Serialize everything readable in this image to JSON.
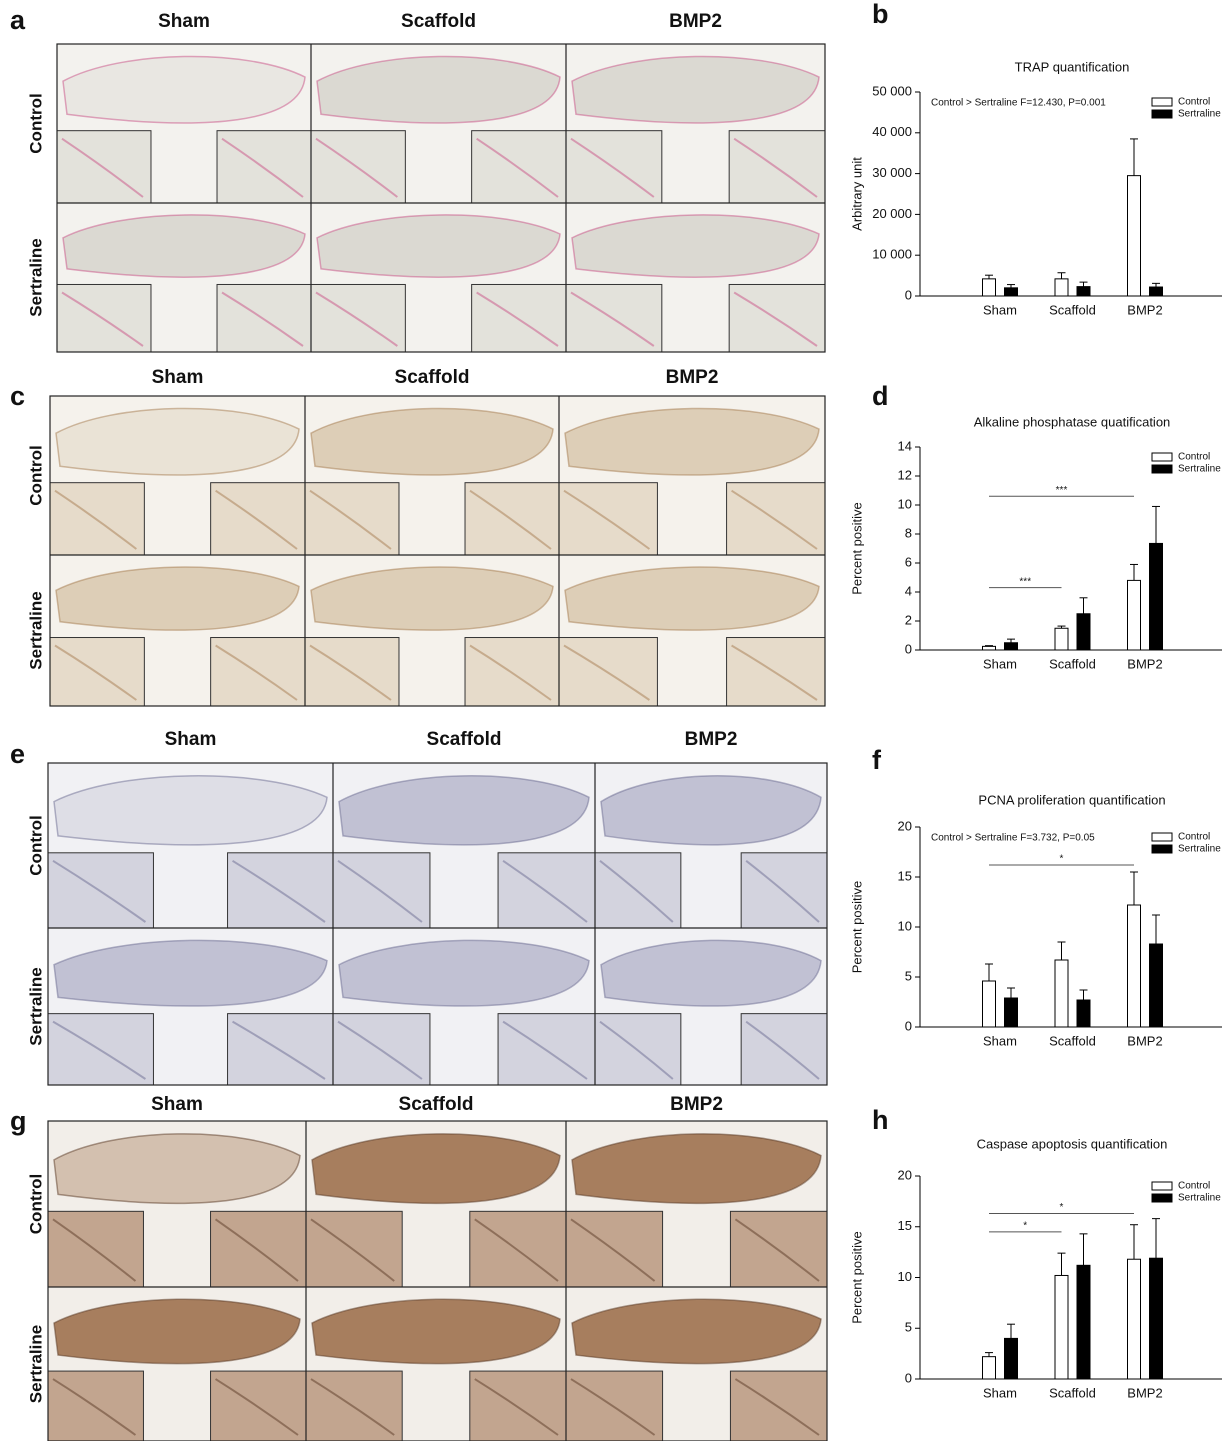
{
  "figure_panels": [
    {
      "letter": "a",
      "columns": [
        "Sham",
        "Scaffold",
        "BMP2"
      ],
      "rows": [
        "Control",
        "Sertraline"
      ]
    },
    {
      "letter": "c",
      "columns": [
        "Sham",
        "Scaffold",
        "BMP2"
      ],
      "rows": [
        "Control",
        "Sertraline"
      ]
    },
    {
      "letter": "e",
      "columns": [
        "Sham",
        "Scaffold",
        "BMP2"
      ],
      "rows": [
        "Control",
        "Sertraline"
      ]
    },
    {
      "letter": "g",
      "columns": [
        "Sham",
        "Scaffold",
        "BMP2"
      ],
      "rows": [
        "Control",
        "Sertraline"
      ]
    }
  ],
  "chart_data": [
    {
      "type": "bar",
      "panel_label": "b",
      "title": "TRAP quantification",
      "y_label": "Arbitrary unit",
      "annotation": "Control > Sertraline F=12.430, P=0.001",
      "categories": [
        "Sham",
        "Scaffold",
        "BMP2"
      ],
      "series": [
        {
          "name": "Control",
          "color": "#ffffff",
          "values": [
            4200,
            4200,
            29500
          ],
          "errors": [
            900,
            1500,
            9000
          ]
        },
        {
          "name": "Sertraline",
          "color": "#000000",
          "values": [
            2000,
            2300,
            2200
          ],
          "errors": [
            800,
            1100,
            900
          ]
        }
      ],
      "ylim": [
        0,
        50000
      ],
      "yticks": [
        0,
        {
          "value": 10000,
          "label": "10 000"
        },
        {
          "value": 20000,
          "label": "20 000"
        },
        {
          "value": 30000,
          "label": "30 000"
        },
        {
          "value": 40000,
          "label": "40 000"
        },
        {
          "value": 50000,
          "label": "50 000"
        }
      ],
      "significance": [],
      "legend": "upper right"
    },
    {
      "type": "bar",
      "panel_label": "d",
      "title": "Alkaline phosphatase quatification",
      "y_label": "Percent positive",
      "categories": [
        "Sham",
        "Scaffold",
        "BMP2"
      ],
      "series": [
        {
          "name": "Control",
          "color": "#ffffff",
          "values": [
            0.25,
            1.5,
            4.8
          ],
          "errors": [
            0.05,
            0.15,
            1.1
          ]
        },
        {
          "name": "Sertraline",
          "color": "#000000",
          "values": [
            0.5,
            2.5,
            7.35
          ],
          "errors": [
            0.25,
            1.1,
            2.55
          ]
        }
      ],
      "ylim": [
        0,
        14
      ],
      "yticks": [
        0,
        2,
        4,
        6,
        8,
        10,
        12,
        14
      ],
      "significance": [
        {
          "from": 0,
          "to": 2,
          "y": 10.6,
          "label": "***"
        },
        {
          "from": 0,
          "to": 1,
          "y": 4.3,
          "label": "***"
        }
      ],
      "legend": "upper right"
    },
    {
      "type": "bar",
      "panel_label": "f",
      "title": "PCNA proliferation quantification",
      "y_label": "Percent positive",
      "annotation": "Control > Sertraline F=3.732, P=0.05",
      "categories": [
        "Sham",
        "Scaffold",
        "BMP2"
      ],
      "series": [
        {
          "name": "Control",
          "color": "#ffffff",
          "values": [
            4.6,
            6.7,
            12.2
          ],
          "errors": [
            1.7,
            1.8,
            3.3
          ]
        },
        {
          "name": "Sertraline",
          "color": "#000000",
          "values": [
            2.9,
            2.7,
            8.3
          ],
          "errors": [
            1.0,
            1.0,
            2.9
          ]
        }
      ],
      "ylim": [
        0,
        20
      ],
      "yticks": [
        0,
        5,
        10,
        15,
        20
      ],
      "significance": [
        {
          "from": 0,
          "to": 2,
          "y": 16.2,
          "label": "*"
        }
      ],
      "legend": "upper right"
    },
    {
      "type": "bar",
      "panel_label": "h",
      "title": "Caspase apoptosis quantification",
      "y_label": "Percent positive",
      "categories": [
        "Sham",
        "Scaffold",
        "BMP2"
      ],
      "series": [
        {
          "name": "Control",
          "color": "#ffffff",
          "values": [
            2.2,
            10.2,
            11.8
          ],
          "errors": [
            0.4,
            2.2,
            3.4
          ]
        },
        {
          "name": "Sertraline",
          "color": "#000000",
          "values": [
            4.0,
            11.2,
            11.9
          ],
          "errors": [
            1.4,
            3.1,
            3.9
          ]
        }
      ],
      "ylim": [
        0,
        20
      ],
      "yticks": [
        0,
        5,
        10,
        15,
        20
      ],
      "significance": [
        {
          "from": 0,
          "to": 1,
          "y": 14.5,
          "label": "*"
        },
        {
          "from": 0,
          "to": 2,
          "y": 16.3,
          "label": "*"
        }
      ],
      "legend": "upper right"
    }
  ]
}
